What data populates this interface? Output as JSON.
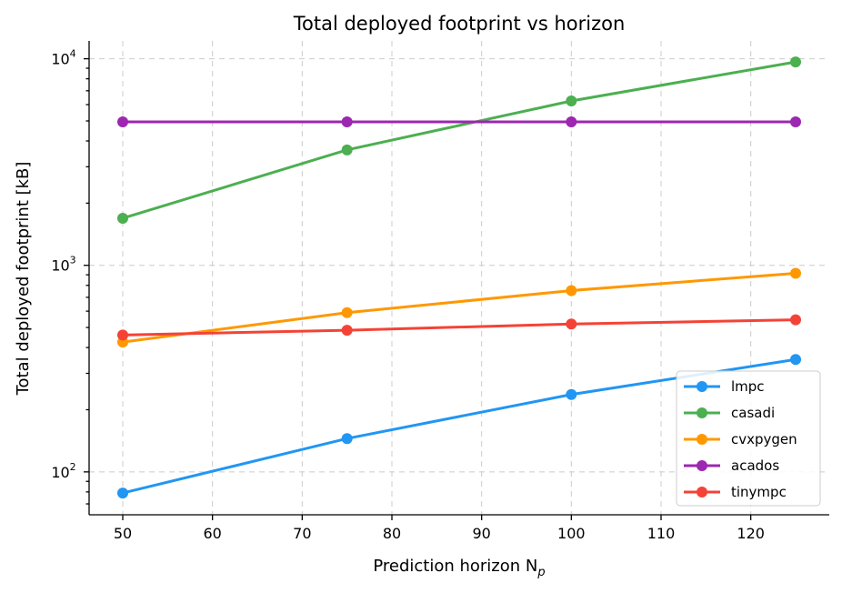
{
  "chart_data": {
    "type": "line",
    "title": "Total deployed footprint vs horizon",
    "xlabel": "Prediction horizon N",
    "xlabel_sub": "p",
    "ylabel": "Total deployed footprint [kB]",
    "yscale": "log",
    "x": [
      50,
      75,
      100,
      125
    ],
    "xlim": [
      46.25,
      128.75
    ],
    "ylim": [
      62,
      12200
    ],
    "xticks": [
      50,
      60,
      70,
      80,
      90,
      100,
      110,
      120
    ],
    "yticks": [
      {
        "value": 100,
        "base": "10",
        "exp": "2"
      },
      {
        "value": 1000,
        "base": "10",
        "exp": "3"
      },
      {
        "value": 10000,
        "base": "10",
        "exp": "4"
      }
    ],
    "grid": true,
    "legend_position": "lower-right",
    "series": [
      {
        "name": "lmpc",
        "color": "#2196f3",
        "values": [
          79,
          145,
          237,
          350
        ]
      },
      {
        "name": "casadi",
        "color": "#4caf50",
        "values": [
          1690,
          3620,
          6250,
          9650
        ]
      },
      {
        "name": "cvxpygen",
        "color": "#ff9800",
        "values": [
          425,
          590,
          755,
          915
        ]
      },
      {
        "name": "acados",
        "color": "#9c27b0",
        "values": [
          4950,
          4950,
          4950,
          4950
        ]
      },
      {
        "name": "tinympc",
        "color": "#f44336",
        "values": [
          460,
          485,
          520,
          545
        ]
      }
    ]
  }
}
